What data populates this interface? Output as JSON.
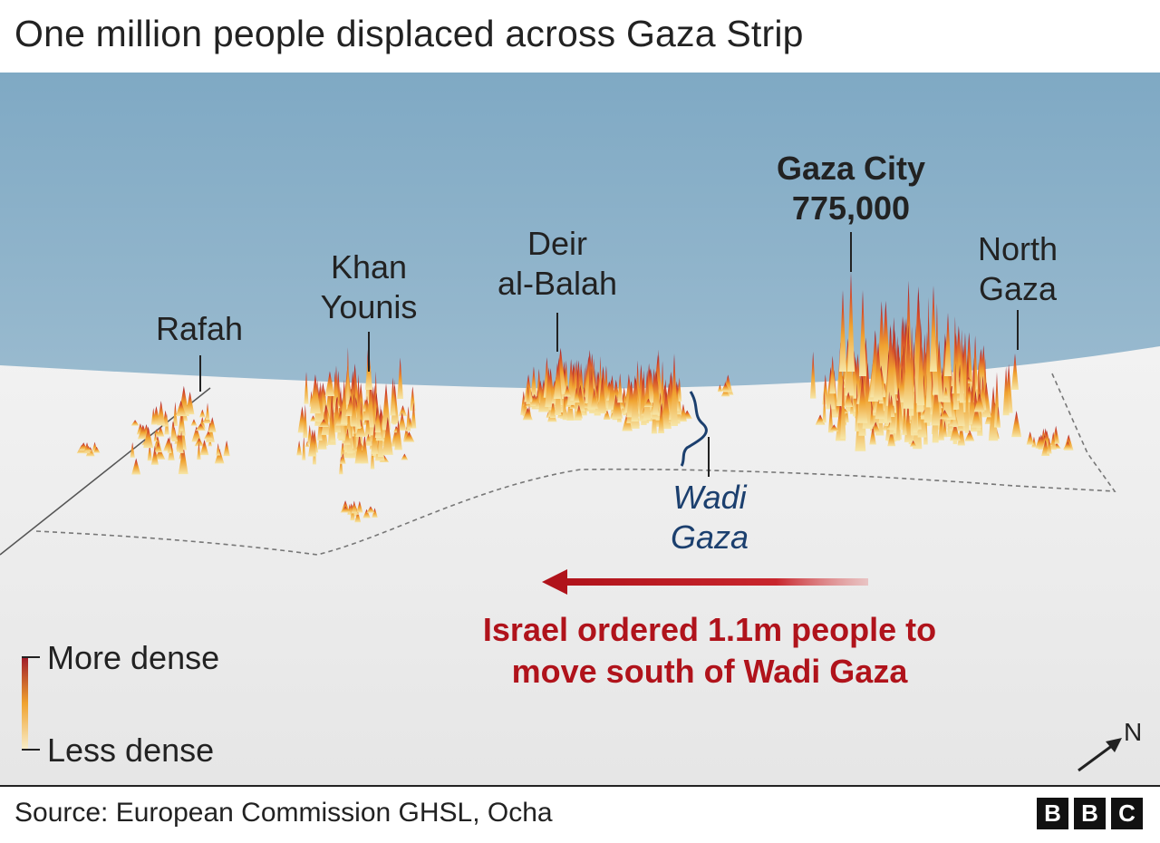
{
  "title": "One million people displaced across Gaza Strip",
  "labels": {
    "rafah": "Rafah",
    "khan_younis_1": "Khan",
    "khan_younis_2": "Younis",
    "deir_1": "Deir",
    "deir_2": "al-Balah",
    "gaza_city": "Gaza City",
    "gaza_city_pop": "775,000",
    "north_1": "North",
    "north_2": "Gaza",
    "wadi_1": "Wadi",
    "wadi_2": "Gaza"
  },
  "annotation": {
    "line1": "Israel ordered 1.1m people to",
    "line2": "move south of Wadi Gaza"
  },
  "legend": {
    "more": "More dense",
    "less": "Less dense"
  },
  "compass": "N",
  "source": "Source: European Commission GHSL, Ocha",
  "logo": [
    "B",
    "B",
    "C"
  ],
  "colors": {
    "sky_top": "#7fa9c4",
    "sky_bottom": "#b9cfdc",
    "land": "#ececec",
    "density_low": "#f4e3a6",
    "density_mid": "#f0a330",
    "density_high": "#9e1a2a",
    "arrow": "#b0131b",
    "wadi": "#1b3f6e"
  }
}
